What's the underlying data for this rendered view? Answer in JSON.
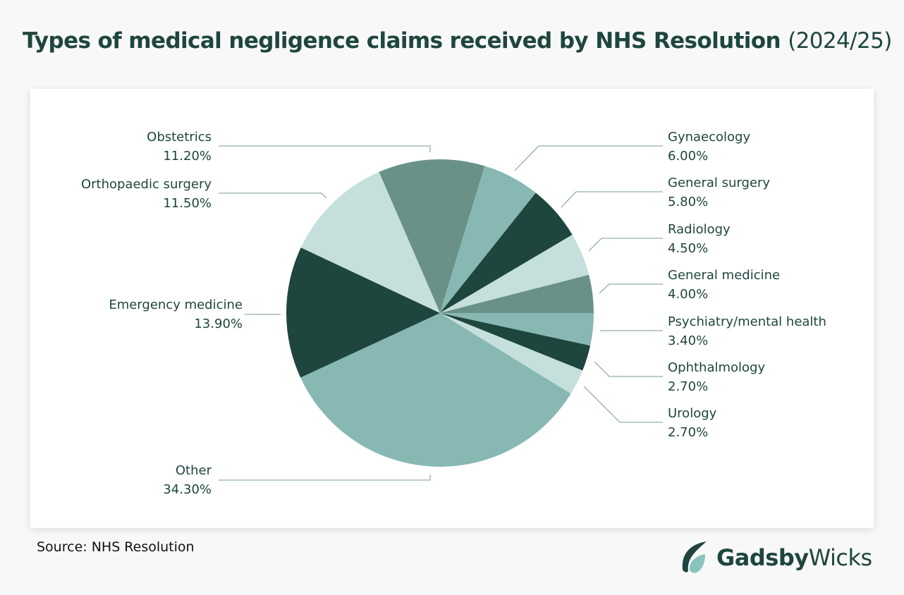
{
  "title": {
    "main": "Types of medical negligence claims received by NHS Resolution",
    "period": "(2024/25)"
  },
  "source": "Source: NHS Resolution",
  "logo": {
    "bold": "Gadsby",
    "light": "Wicks",
    "icon": "leaf-icon"
  },
  "colors": {
    "dark": "#1e463e",
    "mid": "#6a9188",
    "teal": "#88b8b3",
    "light": "#c5e0dc",
    "text": "#1e463e"
  },
  "chart_data": {
    "type": "pie",
    "title": "Types of medical negligence claims received by NHS Resolution (2024/25)",
    "categories": [
      "Obstetrics",
      "Gynaecology",
      "General surgery",
      "Radiology",
      "General medicine",
      "Psychiatry/mental health",
      "Ophthalmology",
      "Urology",
      "Other",
      "Emergency medicine",
      "Orthopaedic surgery"
    ],
    "values": [
      11.2,
      6.0,
      5.8,
      4.5,
      4.0,
      3.4,
      2.7,
      2.7,
      34.3,
      13.9,
      11.5
    ],
    "labels": [
      "11.20%",
      "6.00%",
      "5.80%",
      "4.50%",
      "4.00%",
      "3.40%",
      "2.70%",
      "2.70%",
      "34.30%",
      "13.90%",
      "11.50%"
    ],
    "unit": "%",
    "legend": "none (callout labels)"
  },
  "labels": {
    "obstetrics": {
      "name": "Obstetrics",
      "value": "11.20%"
    },
    "orthopaedic": {
      "name": "Orthopaedic surgery",
      "value": "11.50%"
    },
    "emergency": {
      "name": "Emergency medicine",
      "value": "13.90%"
    },
    "other": {
      "name": "Other",
      "value": "34.30%"
    },
    "gynaecology": {
      "name": "Gynaecology",
      "value": "6.00%"
    },
    "general_surgery": {
      "name": "General surgery",
      "value": "5.80%"
    },
    "radiology": {
      "name": "Radiology",
      "value": "4.50%"
    },
    "general_medicine": {
      "name": "General medicine",
      "value": "4.00%"
    },
    "psychiatry": {
      "name": "Psychiatry/mental health",
      "value": "3.40%"
    },
    "ophthalmology": {
      "name": "Ophthalmology",
      "value": "2.70%"
    },
    "urology": {
      "name": "Urology",
      "value": "2.70%"
    }
  }
}
